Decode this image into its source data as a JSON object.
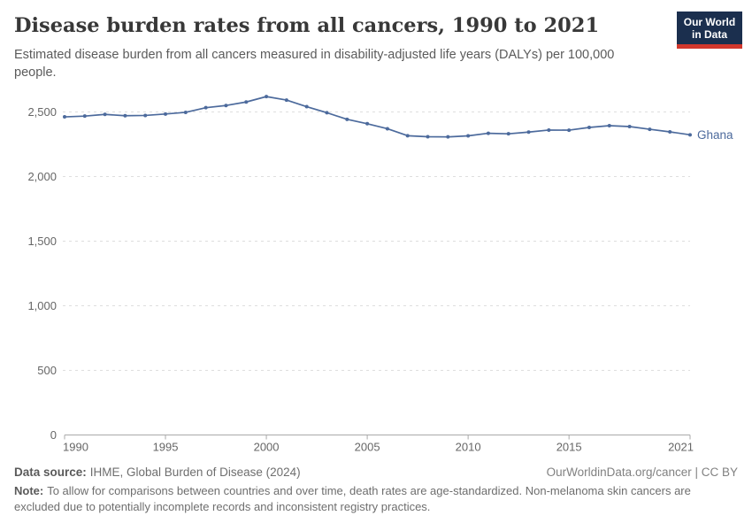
{
  "header": {
    "title": "Disease burden rates from all cancers, 1990 to 2021",
    "subtitle": "Estimated disease burden from all cancers measured in disability-adjusted life years (DALYs) per 100,000 people."
  },
  "logo": {
    "line1": "Our World",
    "line2": "in Data",
    "bg_color": "#1B2F4E",
    "accent_color": "#D2372C"
  },
  "chart_data": {
    "type": "line",
    "title": "Disease burden rates from all cancers, 1990 to 2021",
    "subtitle": "Estimated disease burden from all cancers measured in disability-adjusted life years (DALYs) per 100,000 people.",
    "x": [
      1990,
      1991,
      1992,
      1993,
      1994,
      1995,
      1996,
      1997,
      1998,
      1999,
      2000,
      2001,
      2002,
      2003,
      2004,
      2005,
      2006,
      2007,
      2008,
      2009,
      2010,
      2011,
      2012,
      2013,
      2014,
      2015,
      2016,
      2017,
      2018,
      2019,
      2020,
      2021
    ],
    "series": [
      {
        "name": "Ghana",
        "color": "#4C6A9C",
        "values": [
          2462,
          2468,
          2481,
          2471,
          2473,
          2484,
          2497,
          2533,
          2550,
          2577,
          2619,
          2592,
          2541,
          2494,
          2443,
          2409,
          2370,
          2316,
          2308,
          2307,
          2315,
          2335,
          2331,
          2344,
          2360,
          2359,
          2380,
          2394,
          2387,
          2366,
          2346,
          2323
        ]
      }
    ],
    "xlabel": "",
    "ylabel": "",
    "ylim": [
      0,
      2500
    ],
    "yticks": [
      0,
      500,
      1000,
      1500,
      2000,
      2500
    ],
    "xticks": [
      1990,
      1995,
      2000,
      2005,
      2010,
      2015,
      2021
    ],
    "grid": "horizontal-dashed",
    "legend_position": "end-of-line-label",
    "axis_color": "#a9a9a9",
    "grid_color": "#dedede",
    "tick_label_color": "#666666"
  },
  "footer": {
    "source_label": "Data source:",
    "source_text": "IHME, Global Burden of Disease (2024)",
    "link": "OurWorldinData.org/cancer | CC BY",
    "note_label": "Note:",
    "note_text": "To allow for comparisons between countries and over time, death rates are age-standardized. Non-melanoma skin cancers are excluded due to potentially incomplete records and inconsistent registry practices."
  }
}
